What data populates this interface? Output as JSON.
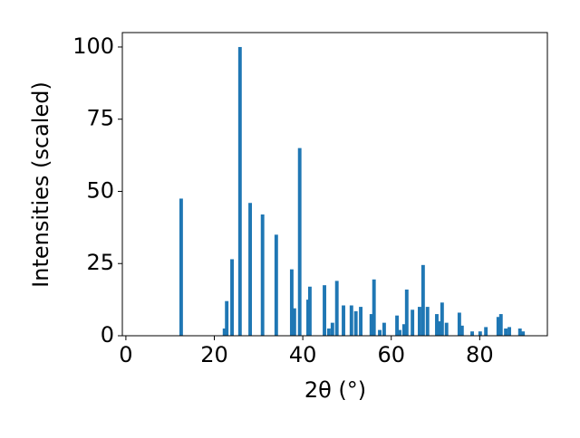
{
  "chart_data": {
    "type": "bar",
    "xlabel": "2θ (°)",
    "ylabel": "Intensities (scaled)",
    "x": [
      12.5,
      22.3,
      22.8,
      24.0,
      25.8,
      28.1,
      30.9,
      34.0,
      37.5,
      38.1,
      39.3,
      41.2,
      41.6,
      44.9,
      45.9,
      46.7,
      47.7,
      49.2,
      51.0,
      52.0,
      53.1,
      55.5,
      56.1,
      57.4,
      58.4,
      61.3,
      61.9,
      62.9,
      63.5,
      64.8,
      66.4,
      67.2,
      68.2,
      70.3,
      70.9,
      71.5,
      72.5,
      75.4,
      76.0,
      78.3,
      80.1,
      81.4,
      84.2,
      84.8,
      85.9,
      86.7,
      89.1,
      89.8
    ],
    "values": [
      47.5,
      2.5,
      12,
      26.5,
      100,
      46,
      42,
      35,
      23,
      9.5,
      65,
      12.5,
      17,
      17.5,
      2.5,
      4.5,
      19,
      10.5,
      10.5,
      8.5,
      10,
      7.5,
      19.5,
      2,
      4.5,
      7,
      2,
      4,
      16,
      9,
      10,
      24.5,
      10,
      7.5,
      5,
      11.5,
      4.5,
      8,
      3.5,
      1.5,
      1.5,
      3,
      6.5,
      7.5,
      2.5,
      3,
      2.5,
      1.5
    ],
    "color": "#1f77b4",
    "xlim": [
      -0.8,
      95.3
    ],
    "xticks": [
      0,
      20,
      40,
      60,
      80
    ],
    "ylim": [
      0,
      105
    ],
    "yticks": [
      0,
      25,
      50,
      75,
      100
    ]
  }
}
